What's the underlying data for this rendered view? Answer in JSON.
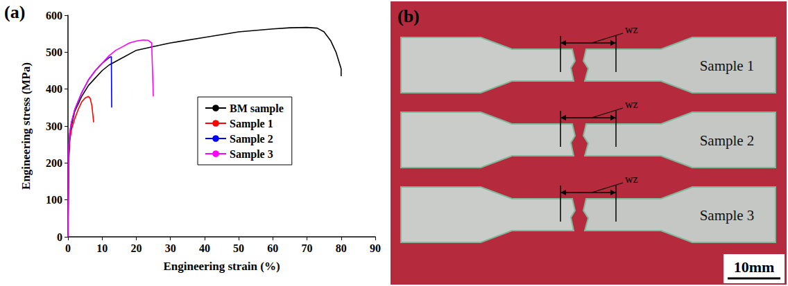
{
  "chart_data": {
    "type": "line",
    "panel_label": "(a)",
    "x_label": "Engineering strain (%)",
    "y_label": "Engineering stress (MPa)",
    "xlim": [
      0,
      90
    ],
    "xticks": [
      0,
      10,
      20,
      30,
      40,
      50,
      60,
      70,
      80,
      90
    ],
    "ylim": [
      0,
      600
    ],
    "yticks": [
      0,
      100,
      200,
      300,
      400,
      500,
      600
    ],
    "grid": false,
    "legend": "center",
    "series": [
      {
        "name": "BM sample",
        "color": "#000000",
        "x": [
          0,
          0.2,
          0.5,
          1,
          2,
          4,
          6,
          8,
          10,
          12,
          15,
          20,
          25,
          30,
          40,
          50,
          60,
          65,
          70,
          73,
          75,
          77,
          78.5,
          79.5,
          80,
          80
        ],
        "values": [
          0,
          200,
          260,
          300,
          340,
          380,
          410,
          430,
          450,
          465,
          480,
          505,
          515,
          525,
          540,
          555,
          563,
          566,
          567,
          565,
          555,
          530,
          500,
          470,
          455,
          435
        ]
      },
      {
        "name": "Sample 1",
        "color": "#ff0000",
        "x": [
          0,
          0.2,
          0.5,
          1,
          2,
          3,
          4,
          5,
          6,
          6.5,
          7,
          7.3,
          7.5
        ],
        "values": [
          0,
          220,
          260,
          290,
          320,
          345,
          365,
          376,
          380,
          375,
          355,
          330,
          310
        ]
      },
      {
        "name": "Sample 2",
        "color": "#0000ff",
        "x": [
          0,
          0.2,
          0.5,
          1,
          2,
          4,
          6,
          8,
          10,
          12,
          12.7,
          12.8
        ],
        "values": [
          0,
          240,
          280,
          310,
          345,
          390,
          425,
          450,
          470,
          485,
          488,
          350
        ]
      },
      {
        "name": "Sample 3",
        "color": "#ff00ff",
        "x": [
          0,
          0.2,
          0.5,
          1,
          2,
          4,
          6,
          8,
          10,
          12,
          14,
          16,
          18,
          20,
          22,
          23.5,
          24.5,
          25
        ],
        "values": [
          0,
          240,
          280,
          310,
          345,
          390,
          425,
          450,
          470,
          490,
          505,
          515,
          525,
          530,
          533,
          532,
          525,
          380
        ]
      }
    ]
  },
  "photo_panel": {
    "panel_label": "(b)",
    "specimens": [
      {
        "label": "Sample 1",
        "weld_zone": "wz"
      },
      {
        "label": "Sample 2",
        "weld_zone": "wz"
      },
      {
        "label": "Sample 3",
        "weld_zone": "wz"
      }
    ],
    "scale_bar": "10mm"
  }
}
